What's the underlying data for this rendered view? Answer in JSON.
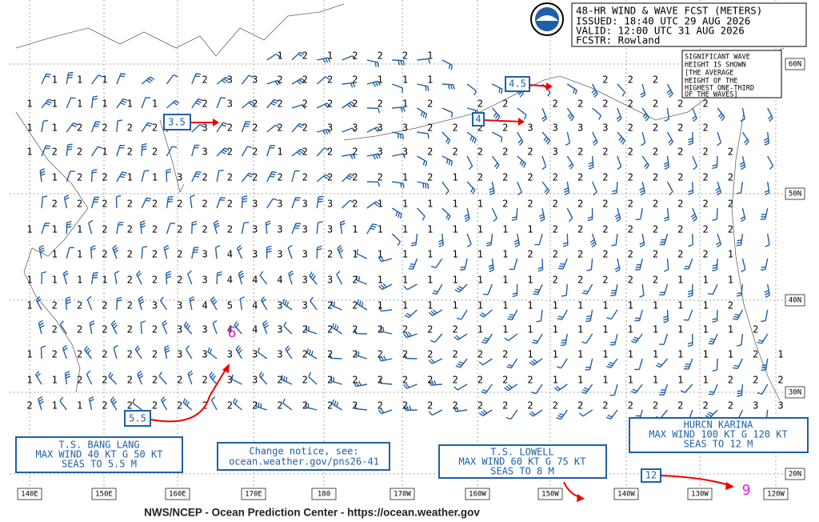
{
  "header": {
    "lines": [
      "48-HR WIND & WAVE FCST (METERS)",
      "ISSUED: 18:40 UTC 29 AUG 2026",
      "VALID: 12:00 UTC 31 AUG 2026",
      "FCSTR:  Rowland"
    ]
  },
  "note": [
    "SIGNIFICANT WAVE",
    "HEIGHT IS SHOWN",
    "[THE AVERAGE",
    "HEIGHT OF THE",
    "HIGHEST ONE-THIRD",
    "OF THE WAVES]"
  ],
  "callouts": [
    "3.5",
    "4.5",
    "4",
    "5.5",
    "12"
  ],
  "storms": [
    {
      "lines": [
        "T.S. BANG LANG",
        "MAX WIND 40 KT G 50 KT",
        "SEAS TO 5.5 M"
      ]
    },
    {
      "lines": [
        "T.S. LOWELL",
        "MAX WIND 60 KT G 75 KT",
        "SEAS TO 8 M"
      ]
    },
    {
      "lines": [
        "HURCN KARINA",
        "MAX WIND 100 KT G 120 KT",
        "SEAS TO 12 M"
      ]
    }
  ],
  "notice": [
    "Change notice, see:",
    "ocean.weather.gov/pns26-41"
  ],
  "latitudes": [
    "60N",
    "50N",
    "40N",
    "30N",
    "20N"
  ],
  "longitudes": [
    "140E",
    "150E",
    "160E",
    "170E",
    "180",
    "170W",
    "160W",
    "150W",
    "140W",
    "130W",
    "120W"
  ],
  "footer": "NWS/NCEP - Ocean Prediction Center - https://ocean.weather.gov",
  "wave_heights": {
    "rows": [
      [
        null,
        null,
        null,
        null,
        null,
        null,
        null,
        null,
        null,
        null,
        1,
        2,
        1,
        2,
        2,
        2,
        1,
        null,
        null,
        null,
        null,
        null,
        null,
        null,
        null,
        null,
        null,
        null,
        null,
        null,
        null
      ],
      [
        null,
        1,
        1,
        1,
        null,
        null,
        null,
        2,
        3,
        3,
        2,
        2,
        2,
        2,
        1,
        1,
        1,
        null,
        null,
        null,
        null,
        null,
        null,
        2,
        2,
        2,
        null,
        null,
        null,
        null,
        null
      ],
      [
        1,
        1,
        1,
        1,
        1,
        1,
        null,
        2,
        3,
        2,
        2,
        2,
        2,
        2,
        2,
        1,
        2,
        null,
        2,
        2,
        null,
        2,
        2,
        2,
        2,
        2,
        2,
        2,
        null,
        null,
        null
      ],
      [
        1,
        1,
        2,
        2,
        2,
        2,
        null,
        3,
        2,
        2,
        2,
        2,
        3,
        3,
        3,
        3,
        2,
        2,
        2,
        2,
        3,
        3,
        3,
        3,
        2,
        2,
        2,
        2,
        null,
        null,
        null
      ],
      [
        1,
        2,
        2,
        1,
        2,
        2,
        null,
        3,
        2,
        2,
        1,
        2,
        2,
        2,
        3,
        3,
        2,
        2,
        2,
        2,
        2,
        3,
        2,
        2,
        2,
        2,
        2,
        2,
        2,
        null,
        null
      ],
      [
        null,
        1,
        2,
        2,
        1,
        1,
        3,
        2,
        2,
        2,
        2,
        2,
        2,
        2,
        2,
        1,
        2,
        1,
        2,
        2,
        2,
        2,
        2,
        2,
        2,
        2,
        2,
        2,
        2,
        null,
        null
      ],
      [
        null,
        2,
        2,
        2,
        2,
        2,
        2,
        2,
        2,
        3,
        3,
        3,
        3,
        2,
        1,
        1,
        1,
        1,
        1,
        2,
        2,
        2,
        2,
        2,
        2,
        2,
        2,
        2,
        2,
        null,
        null
      ],
      [
        1,
        1,
        1,
        2,
        2,
        2,
        2,
        2,
        2,
        3,
        3,
        3,
        3,
        1,
        1,
        1,
        1,
        1,
        1,
        1,
        1,
        2,
        2,
        2,
        2,
        2,
        2,
        2,
        2,
        null,
        null
      ],
      [
        null,
        1,
        1,
        2,
        2,
        2,
        2,
        3,
        4,
        3,
        3,
        3,
        2,
        1,
        1,
        1,
        1,
        1,
        1,
        1,
        2,
        2,
        2,
        2,
        2,
        2,
        2,
        2,
        1,
        null,
        null
      ],
      [
        1,
        1,
        1,
        1,
        2,
        2,
        2,
        3,
        4,
        4,
        4,
        3,
        3,
        2,
        1,
        1,
        1,
        1,
        1,
        1,
        1,
        2,
        2,
        2,
        2,
        2,
        1,
        1,
        1,
        null,
        null
      ],
      [
        1,
        2,
        2,
        2,
        2,
        3,
        3,
        4,
        5,
        4,
        3,
        3,
        2,
        2,
        1,
        1,
        1,
        1,
        1,
        1,
        1,
        1,
        1,
        1,
        1,
        1,
        1,
        1,
        2,
        null,
        null
      ],
      [
        null,
        2,
        2,
        2,
        2,
        2,
        3,
        3,
        4,
        4,
        3,
        2,
        2,
        2,
        2,
        2,
        2,
        2,
        1,
        1,
        1,
        1,
        1,
        1,
        1,
        1,
        1,
        1,
        1,
        2,
        null
      ],
      [
        1,
        2,
        2,
        2,
        2,
        2,
        3,
        3,
        3,
        3,
        3,
        2,
        2,
        2,
        2,
        2,
        2,
        2,
        2,
        2,
        1,
        1,
        1,
        1,
        1,
        1,
        1,
        1,
        1,
        2,
        1
      ],
      [
        1,
        1,
        2,
        2,
        2,
        2,
        2,
        2,
        3,
        3,
        2,
        2,
        2,
        2,
        2,
        2,
        2,
        2,
        2,
        2,
        2,
        1,
        1,
        1,
        1,
        1,
        1,
        1,
        2,
        2,
        2
      ],
      [
        2,
        1,
        1,
        2,
        2,
        2,
        2,
        2,
        2,
        2,
        2,
        2,
        2,
        2,
        2,
        2,
        2,
        2,
        2,
        2,
        2,
        2,
        2,
        2,
        2,
        2,
        2,
        2,
        2,
        3,
        3
      ]
    ]
  }
}
